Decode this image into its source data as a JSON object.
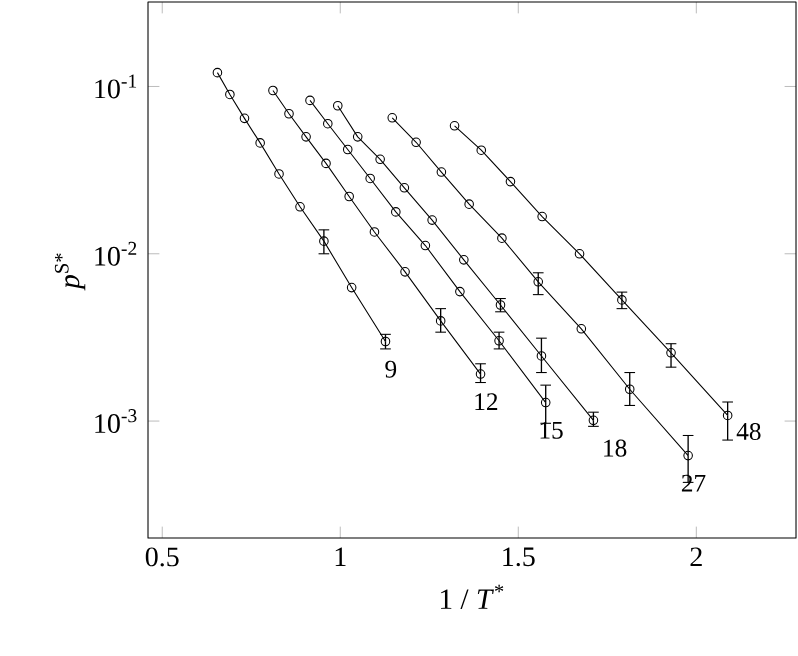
{
  "chart_data": {
    "type": "line",
    "xlabel": "1 / *T*$^{*}$",
    "ylabel": "*p*$^{S*}$",
    "log": "y",
    "xlim": [
      0.46,
      2.28
    ],
    "ylim": [
      0.0002,
      0.32
    ],
    "xticks": [
      0.5,
      1,
      1.5,
      2
    ],
    "yticks": [
      {
        "value": 0.1,
        "label": "10$^{-1}$"
      },
      {
        "value": 0.01,
        "label": "10$^{-2}$"
      },
      {
        "value": 0.001,
        "label": "10$^{-3}$"
      }
    ],
    "marker": "circle",
    "line_style": "solid",
    "grid": false,
    "series": [
      {
        "name": "9",
        "color": "#000000",
        "x": [
          0.655,
          0.69,
          0.731,
          0.775,
          0.828,
          0.887,
          0.954,
          1.032,
          1.127
        ],
        "values": [
          0.121,
          0.0896,
          0.0645,
          0.046,
          0.03,
          0.0191,
          0.0119,
          0.00628,
          0.00299
        ],
        "errors": [
          null,
          null,
          null,
          null,
          null,
          null,
          [
            0.01,
            0.0139
          ],
          null,
          [
            0.0027,
            0.0033
          ]
        ]
      },
      {
        "name": "12",
        "color": "#000000",
        "x": [
          0.811,
          0.856,
          0.904,
          0.96,
          1.025,
          1.096,
          1.182,
          1.282,
          1.394
        ],
        "values": [
          0.0946,
          0.0687,
          0.05,
          0.0347,
          0.022,
          0.0135,
          0.0078,
          0.00397,
          0.00191
        ],
        "errors": [
          null,
          null,
          null,
          null,
          null,
          null,
          null,
          [
            0.0034,
            0.0047
          ],
          [
            0.0017,
            0.0022
          ]
        ]
      },
      {
        "name": "15",
        "color": "#000000",
        "x": [
          0.915,
          0.965,
          1.021,
          1.084,
          1.156,
          1.239,
          1.336,
          1.446,
          1.577
        ],
        "values": [
          0.0826,
          0.0599,
          0.042,
          0.0282,
          0.0178,
          0.0112,
          0.00594,
          0.00302,
          0.00129
        ],
        "errors": [
          null,
          null,
          null,
          null,
          null,
          null,
          null,
          [
            0.0027,
            0.0034
          ],
          [
            0.00097,
            0.00164
          ]
        ]
      },
      {
        "name": "18",
        "color": "#000000",
        "x": [
          0.993,
          1.049,
          1.112,
          1.18,
          1.258,
          1.347,
          1.45,
          1.565,
          1.711
        ],
        "values": [
          0.0767,
          0.05,
          0.0367,
          0.0248,
          0.0159,
          0.0092,
          0.00494,
          0.00245,
          0.00101
        ],
        "errors": [
          null,
          null,
          null,
          null,
          null,
          null,
          [
            0.0045,
            0.0054
          ],
          [
            0.00195,
            0.00313
          ],
          [
            0.00093,
            0.00113
          ]
        ]
      },
      {
        "name": "27",
        "color": "#000000",
        "x": [
          1.146,
          1.213,
          1.284,
          1.362,
          1.454,
          1.556,
          1.677,
          1.813,
          1.977
        ],
        "values": [
          0.065,
          0.0464,
          0.0308,
          0.0198,
          0.0124,
          0.0068,
          0.00356,
          0.00155,
          0.000622
        ],
        "errors": [
          null,
          null,
          null,
          null,
          null,
          [
            0.0057,
            0.0077
          ],
          null,
          [
            0.00124,
            0.00195
          ],
          [
            0.00043,
            0.00082
          ]
        ]
      },
      {
        "name": "48",
        "color": "#000000",
        "x": [
          1.321,
          1.396,
          1.478,
          1.567,
          1.672,
          1.791,
          1.929,
          2.088
        ],
        "values": [
          0.0582,
          0.0416,
          0.027,
          0.0167,
          0.01,
          0.0053,
          0.00256,
          0.00108
        ],
        "errors": [
          null,
          null,
          null,
          null,
          null,
          [
            0.0047,
            0.0059
          ],
          [
            0.0021,
            0.0029
          ],
          [
            0.00077,
            0.0013
          ]
        ]
      }
    ]
  }
}
